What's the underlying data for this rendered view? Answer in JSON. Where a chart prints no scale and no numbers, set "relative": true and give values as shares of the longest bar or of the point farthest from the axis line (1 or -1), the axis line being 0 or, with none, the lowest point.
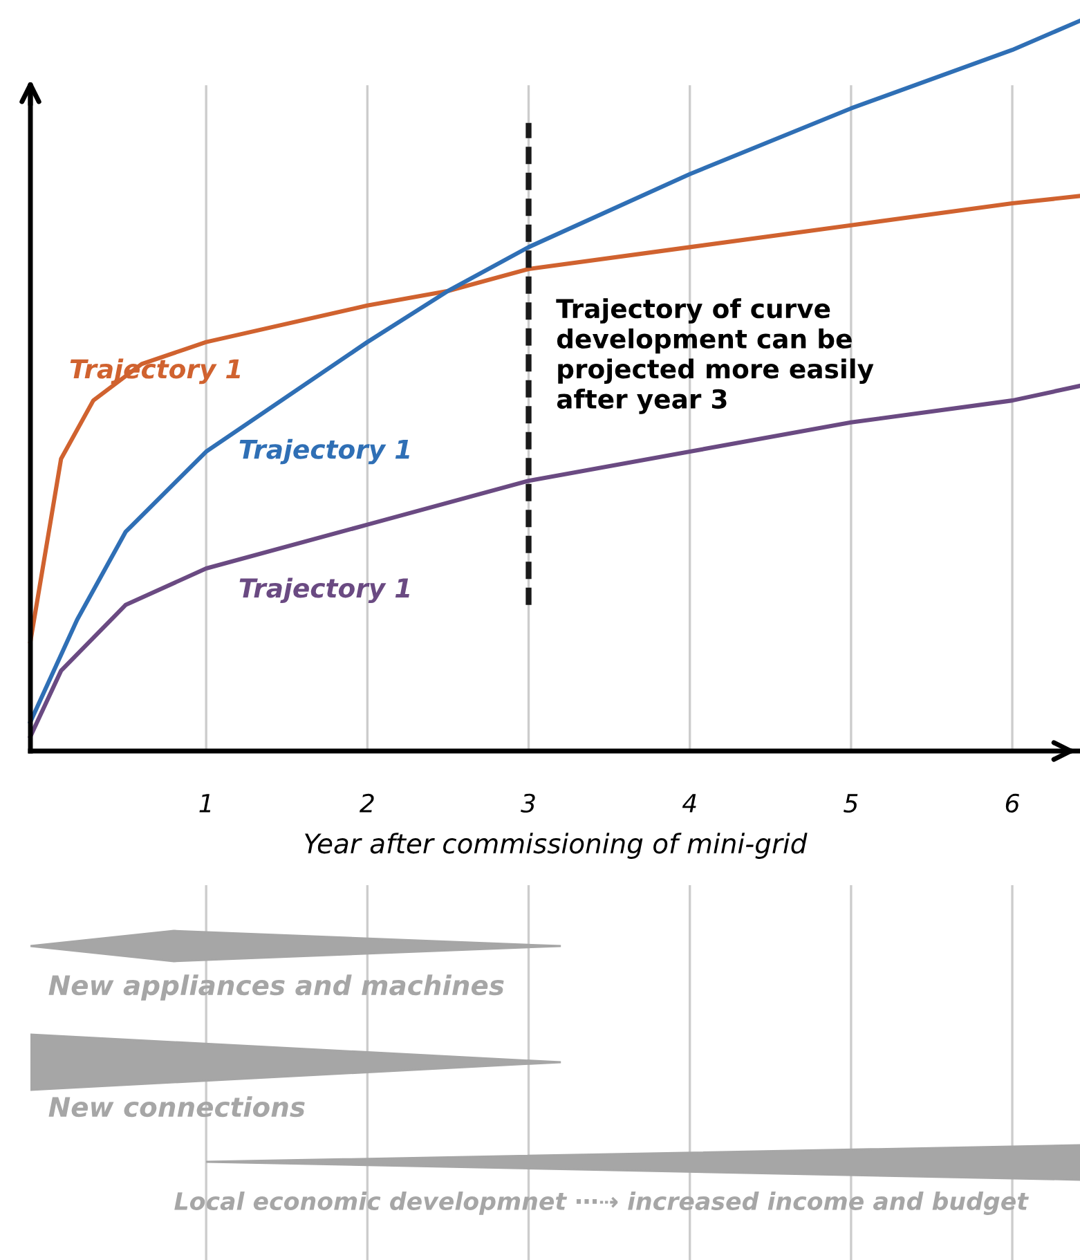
{
  "chart_data": {
    "type": "line",
    "relative": true,
    "xlabel": "Year after commissioning of mini-grid",
    "xlim": [
      -0.09,
      6.42
    ],
    "xticks": [
      1,
      2,
      3,
      4,
      5,
      6
    ],
    "grid": "x",
    "line_style": "solid",
    "marker": "none",
    "series": [
      {
        "name": "Trajectory 1",
        "color": "#d0622f",
        "x": [
          -0.09,
          0.1,
          0.3,
          0.6,
          1,
          2,
          2.5,
          3,
          4,
          5,
          6,
          6.42
        ],
        "values": [
          0.15,
          0.4,
          0.48,
          0.53,
          0.56,
          0.61,
          0.63,
          0.66,
          0.69,
          0.72,
          0.75,
          0.76
        ]
      },
      {
        "name": "Trajectory 1",
        "color": "#2f6fb5",
        "x": [
          -0.09,
          0.2,
          0.5,
          1,
          2,
          2.5,
          3,
          4,
          5,
          6,
          6.42
        ],
        "values": [
          0.04,
          0.18,
          0.3,
          0.41,
          0.56,
          0.63,
          0.69,
          0.79,
          0.88,
          0.96,
          1.0
        ]
      },
      {
        "name": "Trajectory 1",
        "color": "#6a4a82",
        "x": [
          -0.09,
          0.1,
          0.5,
          1,
          2,
          3,
          4,
          5,
          6,
          6.42
        ],
        "values": [
          0.02,
          0.11,
          0.2,
          0.25,
          0.31,
          0.37,
          0.41,
          0.45,
          0.48,
          0.5
        ]
      }
    ],
    "ref_lines": [
      {
        "axis": "x",
        "value": 3,
        "label": "Trajectory of curve\ndevelopment can be\nprojected more easily\nafter year 3",
        "color": "#1a1a1a",
        "line_style": "dashed"
      }
    ],
    "annotations": [
      "New appliances and machines",
      "New connections",
      "Local economic developmnet ⋯⇢ increased income and budget"
    ]
  }
}
